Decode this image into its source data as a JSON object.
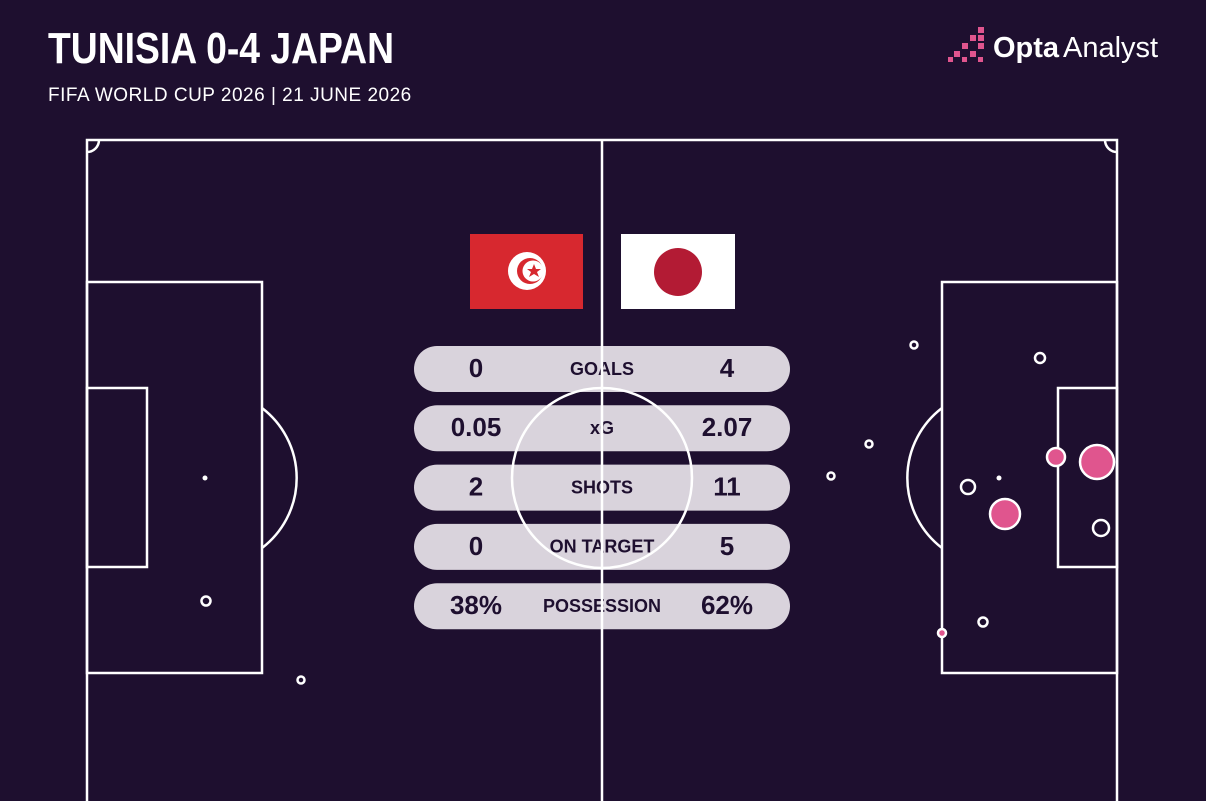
{
  "header": {
    "title": "TUNISIA 0-4 JAPAN",
    "subtitle": "FIFA WORLD CUP 2026 | 21 JUNE 2026",
    "logo": {
      "brand": "Opta",
      "product": "Analyst"
    }
  },
  "stats": {
    "rows": [
      {
        "label": "GOALS",
        "home": "0",
        "away": "4"
      },
      {
        "label": "xG",
        "home": "0.05",
        "away": "2.07"
      },
      {
        "label": "SHOTS",
        "home": "2",
        "away": "11"
      },
      {
        "label": "ON TARGET",
        "home": "0",
        "away": "5"
      },
      {
        "label": "POSSESSION",
        "home": "38%",
        "away": "62%"
      }
    ]
  }
}
